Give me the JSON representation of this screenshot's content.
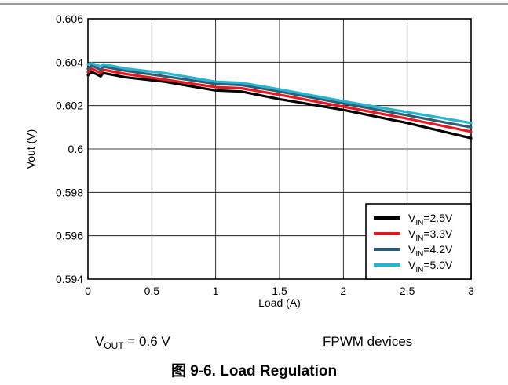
{
  "chart_data": {
    "type": "line",
    "xlabel": "Load (A)",
    "ylabel": "Vout (V)",
    "xlim": [
      0,
      3
    ],
    "ylim": [
      0.594,
      0.606
    ],
    "xticks": [
      0,
      0.5,
      1,
      1.5,
      2,
      2.5,
      3
    ],
    "xtick_labels": [
      "0",
      "0.5",
      "1",
      "1.5",
      "2",
      "2.5",
      "3"
    ],
    "yticks": [
      0.594,
      0.596,
      0.598,
      0.6,
      0.602,
      0.604,
      0.606
    ],
    "ytick_labels": [
      "0.594",
      "0.596",
      "0.598",
      "0.6",
      "0.602",
      "0.604",
      "0.606"
    ],
    "grid": true,
    "legend_position": "bottom-right",
    "series": [
      {
        "name_base": "V",
        "name_sub": "IN",
        "name_rest": "=2.5V",
        "color": "#000000",
        "x": [
          0,
          0.03,
          0.1,
          0.12,
          0.3,
          0.6,
          1.0,
          1.2,
          1.5,
          2.0,
          2.5,
          3.0
        ],
        "y": [
          0.6034,
          0.60355,
          0.60335,
          0.6035,
          0.6033,
          0.6031,
          0.6027,
          0.60265,
          0.6023,
          0.6018,
          0.6012,
          0.6005
        ]
      },
      {
        "name_base": "V",
        "name_sub": "IN",
        "name_rest": "=3.3V",
        "color": "#e8181c",
        "x": [
          0,
          0.03,
          0.1,
          0.12,
          0.3,
          0.6,
          1.0,
          1.2,
          1.5,
          2.0,
          2.5,
          3.0
        ],
        "y": [
          0.60355,
          0.6037,
          0.6035,
          0.60365,
          0.60345,
          0.6032,
          0.60285,
          0.6028,
          0.6025,
          0.60195,
          0.6014,
          0.6008
        ]
      },
      {
        "name_base": "V",
        "name_sub": "IN",
        "name_rest": "=4.2V",
        "color": "#2e5d73",
        "x": [
          0,
          0.03,
          0.1,
          0.12,
          0.3,
          0.6,
          1.0,
          1.2,
          1.5,
          2.0,
          2.5,
          3.0
        ],
        "y": [
          0.6037,
          0.60385,
          0.60365,
          0.6038,
          0.6036,
          0.60335,
          0.603,
          0.60295,
          0.60265,
          0.6021,
          0.60155,
          0.601
        ]
      },
      {
        "name_base": "V",
        "name_sub": "IN",
        "name_rest": "=5.0V",
        "color": "#27b4d3",
        "x": [
          0,
          0.03,
          0.1,
          0.12,
          0.3,
          0.6,
          1.0,
          1.2,
          1.5,
          2.0,
          2.5,
          3.0
        ],
        "y": [
          0.6039,
          0.60395,
          0.6038,
          0.6039,
          0.6037,
          0.6035,
          0.6031,
          0.60305,
          0.60275,
          0.6022,
          0.6017,
          0.6012
        ]
      }
    ]
  },
  "captions": {
    "vout_base": "V",
    "vout_sub": "OUT",
    "vout_rest": " = 0.6 V",
    "fpwm": "FPWM devices"
  },
  "figure_title": "图 9-6. Load Regulation"
}
